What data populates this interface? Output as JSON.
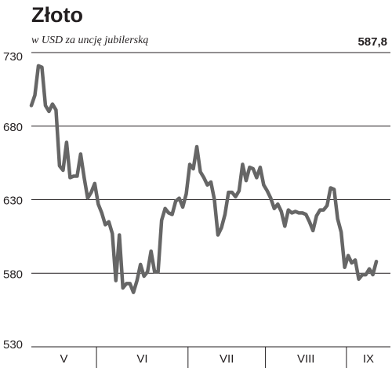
{
  "header": {
    "title": "Złoto",
    "subtitle": "w USD za uncję jubilerską",
    "last_value": "587,8"
  },
  "chart_data": {
    "type": "line",
    "title": "Złoto",
    "subtitle": "w USD za uncję jubilerską",
    "ylim": [
      530,
      730
    ],
    "yticks": [
      730,
      680,
      630,
      580,
      530
    ],
    "grid": true,
    "series_color": "#666666",
    "months": [
      "V",
      "VI",
      "VII",
      "VIII",
      "IX"
    ],
    "month_bounds": [
      [
        0,
        18.5
      ],
      [
        18.5,
        44.5
      ],
      [
        44.5,
        66.5
      ],
      [
        66.5,
        89.5
      ],
      [
        89.5,
        102
      ]
    ],
    "x_domain": [
      0,
      102
    ],
    "series": [
      {
        "values": [
          694,
          701,
          721,
          720,
          694,
          690,
          695,
          691,
          653,
          650,
          669,
          645,
          646,
          646,
          661,
          645,
          631,
          635,
          641,
          627,
          621,
          613,
          615,
          607,
          575,
          606,
          570,
          573,
          573,
          567,
          575,
          586,
          578,
          581,
          595,
          581,
          581,
          616,
          624,
          621,
          620,
          629,
          631,
          625,
          634,
          654,
          651,
          666,
          649,
          645,
          640,
          642,
          630,
          606,
          611,
          620,
          635,
          635,
          632,
          636,
          654,
          643,
          652,
          651,
          645,
          652,
          640,
          636,
          631,
          624,
          627,
          622,
          612,
          623,
          621,
          622,
          621,
          621,
          620,
          615,
          609,
          619,
          623,
          623,
          626,
          638,
          637,
          617,
          608,
          584,
          592,
          587,
          589,
          576,
          579,
          579,
          583,
          579,
          588
        ]
      }
    ]
  }
}
